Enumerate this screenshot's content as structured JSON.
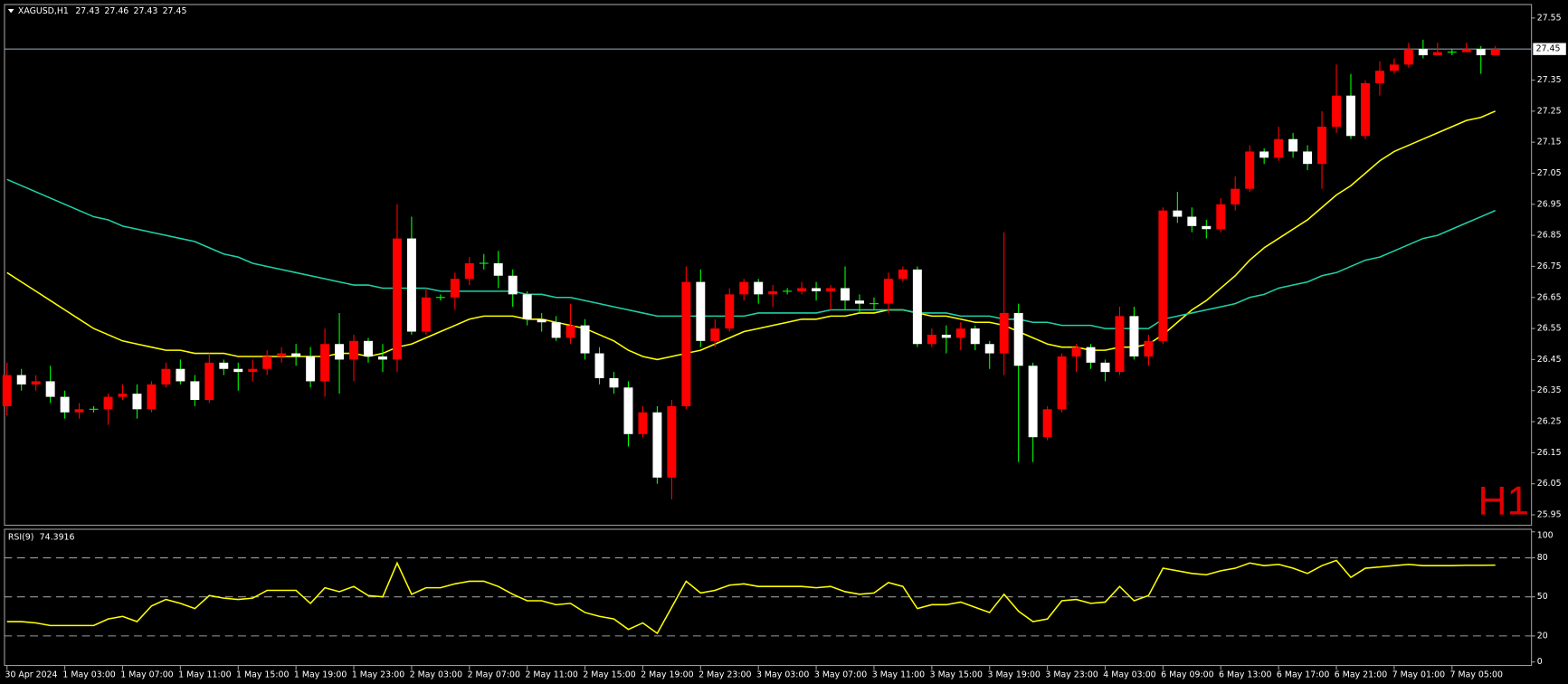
{
  "chart_data": [
    {
      "type": "candlestick",
      "symbol": "XAGUSD,H1",
      "period_label": "H1",
      "up_color": "#ff0000",
      "down_color": "#ffffff",
      "wick_down_color": "#00ff00",
      "price_line_color": "#8c9aa8",
      "categories": [
        "30 Apr 2024",
        null,
        null,
        null,
        "1 May 03:00",
        null,
        null,
        null,
        "1 May 07:00",
        null,
        null,
        null,
        "1 May 11:00",
        null,
        null,
        null,
        "1 May 15:00",
        null,
        null,
        null,
        "1 May 19:00",
        null,
        null,
        null,
        "1 May 23:00",
        null,
        null,
        null,
        "2 May 03:00",
        null,
        null,
        null,
        "2 May 07:00",
        null,
        null,
        null,
        "2 May 11:00",
        null,
        null,
        null,
        "2 May 15:00",
        null,
        null,
        null,
        "2 May 19:00",
        null,
        null,
        null,
        "2 May 23:00",
        null,
        null,
        null,
        "3 May 03:00",
        null,
        null,
        null,
        "3 May 07:00",
        null,
        null,
        null,
        "3 May 11:00",
        null,
        null,
        null,
        "3 May 15:00",
        null,
        null,
        null,
        "3 May 19:00",
        null,
        null,
        null,
        "3 May 23:00",
        null,
        null,
        null,
        "4 May 03:00",
        null,
        null,
        null,
        "6 May 09:00",
        null,
        null,
        null,
        "6 May 13:00",
        null,
        null,
        null,
        "6 May 17:00",
        null,
        null,
        null,
        "6 May 21:00",
        null,
        null,
        null,
        "7 May 01:00",
        null,
        null,
        null,
        "7 May 05:00",
        null,
        null,
        null
      ],
      "open": [
        26.3,
        26.4,
        26.37,
        26.38,
        26.33,
        26.28,
        26.29,
        26.29,
        26.33,
        26.34,
        26.29,
        26.37,
        26.42,
        26.38,
        26.32,
        26.44,
        26.42,
        26.41,
        26.42,
        26.46,
        26.47,
        26.46,
        26.38,
        26.5,
        26.45,
        26.51,
        26.46,
        26.45,
        26.84,
        26.54,
        26.65,
        26.65,
        26.71,
        26.76,
        26.76,
        26.72,
        26.66,
        26.58,
        26.57,
        26.52,
        26.56,
        26.47,
        26.39,
        26.36,
        26.21,
        26.28,
        26.07,
        26.3,
        26.7,
        26.51,
        26.55,
        26.66,
        26.7,
        26.66,
        26.67,
        26.67,
        26.68,
        26.67,
        26.68,
        26.64,
        26.63,
        26.63,
        26.71,
        26.74,
        26.5,
        26.53,
        26.52,
        26.55,
        26.5,
        26.47,
        26.6,
        26.43,
        26.2,
        26.29,
        26.46,
        26.49,
        26.44,
        26.41,
        26.59,
        26.46,
        26.51,
        26.93,
        26.91,
        26.88,
        26.87,
        26.95,
        27.0,
        27.12,
        27.1,
        27.16,
        27.12,
        27.08,
        27.2,
        27.3,
        27.17,
        27.34,
        27.38,
        27.4,
        27.45,
        27.43,
        27.44,
        27.44,
        27.45,
        27.43
      ],
      "high": [
        26.44,
        26.42,
        26.4,
        26.43,
        26.35,
        26.31,
        26.3,
        26.34,
        26.37,
        26.37,
        26.38,
        26.44,
        26.45,
        26.4,
        26.47,
        26.45,
        26.44,
        26.45,
        26.48,
        26.49,
        26.5,
        26.49,
        26.55,
        26.6,
        26.53,
        26.52,
        26.5,
        26.95,
        26.91,
        26.68,
        26.66,
        26.73,
        26.78,
        26.79,
        26.8,
        26.74,
        26.67,
        26.6,
        26.59,
        26.63,
        26.58,
        26.49,
        26.41,
        26.38,
        26.3,
        26.3,
        26.32,
        26.75,
        26.74,
        26.58,
        26.68,
        26.71,
        26.71,
        26.69,
        26.68,
        26.7,
        26.7,
        26.69,
        26.75,
        26.66,
        26.65,
        26.73,
        26.75,
        26.75,
        26.55,
        26.56,
        26.57,
        26.56,
        26.51,
        26.86,
        26.63,
        26.44,
        26.3,
        26.47,
        26.5,
        26.5,
        26.45,
        26.62,
        26.62,
        26.53,
        26.94,
        26.99,
        26.94,
        26.9,
        26.97,
        27.04,
        27.14,
        27.13,
        27.2,
        27.18,
        27.14,
        27.25,
        27.4,
        27.37,
        27.35,
        27.41,
        27.42,
        27.47,
        27.48,
        27.47,
        27.45,
        27.47,
        27.46,
        27.46
      ],
      "low": [
        26.27,
        26.35,
        26.35,
        26.31,
        26.26,
        26.26,
        26.28,
        26.24,
        26.32,
        26.26,
        26.28,
        26.36,
        26.37,
        26.3,
        26.31,
        26.4,
        26.35,
        26.38,
        26.4,
        26.44,
        26.43,
        26.36,
        26.33,
        26.34,
        26.38,
        26.44,
        26.41,
        26.41,
        26.53,
        26.53,
        26.64,
        26.61,
        26.69,
        26.74,
        26.68,
        26.62,
        26.56,
        26.54,
        26.51,
        26.5,
        26.45,
        26.37,
        26.34,
        26.17,
        26.2,
        26.05,
        26.0,
        26.29,
        26.49,
        26.49,
        26.54,
        26.64,
        26.63,
        26.62,
        26.66,
        26.66,
        26.64,
        26.61,
        26.61,
        26.6,
        26.61,
        26.6,
        26.7,
        26.49,
        26.49,
        26.47,
        26.48,
        26.48,
        26.42,
        26.4,
        26.12,
        26.12,
        26.19,
        26.28,
        26.41,
        26.42,
        26.38,
        26.4,
        26.45,
        26.43,
        26.5,
        26.89,
        26.86,
        26.84,
        26.86,
        26.93,
        26.99,
        27.08,
        27.09,
        27.1,
        27.06,
        27.0,
        27.18,
        27.16,
        27.16,
        27.3,
        27.37,
        27.39,
        27.42,
        27.43,
        27.43,
        27.44,
        27.37,
        27.43
      ],
      "close": [
        26.4,
        26.37,
        26.38,
        26.33,
        26.28,
        26.29,
        26.29,
        26.33,
        26.34,
        26.29,
        26.37,
        26.42,
        26.38,
        26.32,
        26.44,
        26.42,
        26.41,
        26.42,
        26.46,
        26.47,
        26.46,
        26.38,
        26.5,
        26.45,
        26.51,
        26.46,
        26.45,
        26.84,
        26.54,
        26.65,
        26.65,
        26.71,
        26.76,
        26.76,
        26.72,
        26.66,
        26.58,
        26.57,
        26.52,
        26.56,
        26.47,
        26.39,
        26.36,
        26.21,
        26.28,
        26.07,
        26.3,
        26.7,
        26.51,
        26.55,
        26.66,
        26.7,
        26.66,
        26.67,
        26.67,
        26.68,
        26.67,
        26.68,
        26.64,
        26.63,
        26.63,
        26.71,
        26.74,
        26.5,
        26.53,
        26.52,
        26.55,
        26.5,
        26.47,
        26.6,
        26.43,
        26.2,
        26.29,
        26.46,
        26.49,
        26.44,
        26.41,
        26.59,
        26.46,
        26.51,
        26.93,
        26.91,
        26.88,
        26.87,
        26.95,
        27.0,
        27.12,
        27.1,
        27.16,
        27.12,
        27.08,
        27.2,
        27.3,
        27.17,
        27.34,
        27.38,
        27.4,
        27.45,
        27.43,
        27.44,
        27.44,
        27.45,
        27.43,
        27.45
      ],
      "overlays": [
        {
          "type": "line",
          "color": "#ffff00",
          "values": [
            26.73,
            26.7,
            26.67,
            26.64,
            26.61,
            26.58,
            26.55,
            26.53,
            26.51,
            26.5,
            26.49,
            26.48,
            26.48,
            26.47,
            26.47,
            26.47,
            26.46,
            26.46,
            26.46,
            26.46,
            26.46,
            26.46,
            26.46,
            26.47,
            26.47,
            26.46,
            26.47,
            26.49,
            26.5,
            26.52,
            26.54,
            26.56,
            26.58,
            26.59,
            26.59,
            26.59,
            26.58,
            26.58,
            26.57,
            26.56,
            26.55,
            26.53,
            26.51,
            26.48,
            26.46,
            26.45,
            26.46,
            26.47,
            26.48,
            26.5,
            26.52,
            26.54,
            26.55,
            26.56,
            26.57,
            26.58,
            26.58,
            26.59,
            26.59,
            26.6,
            26.6,
            26.61,
            26.61,
            26.6,
            26.59,
            26.59,
            26.58,
            26.57,
            26.57,
            26.56,
            26.54,
            26.52,
            26.5,
            26.49,
            26.49,
            26.48,
            26.48,
            26.49,
            26.49,
            26.5,
            26.53,
            26.57,
            26.61,
            26.64,
            26.68,
            26.72,
            26.77,
            26.81,
            26.84,
            26.87,
            26.9,
            26.94,
            26.98,
            27.01,
            27.05,
            27.09,
            27.12,
            27.14,
            27.16,
            27.18,
            27.2,
            27.22,
            27.23,
            27.25
          ]
        },
        {
          "type": "line",
          "color": "#1fd1a8",
          "values": [
            27.03,
            27.01,
            26.99,
            26.97,
            26.95,
            26.93,
            26.91,
            26.9,
            26.88,
            26.87,
            26.86,
            26.85,
            26.84,
            26.83,
            26.81,
            26.79,
            26.78,
            26.76,
            26.75,
            26.74,
            26.73,
            26.72,
            26.71,
            26.7,
            26.69,
            26.69,
            26.68,
            26.68,
            26.68,
            26.68,
            26.67,
            26.67,
            26.67,
            26.67,
            26.67,
            26.67,
            26.66,
            26.66,
            26.65,
            26.65,
            26.64,
            26.63,
            26.62,
            26.61,
            26.6,
            26.59,
            26.59,
            26.59,
            26.59,
            26.59,
            26.59,
            26.59,
            26.6,
            26.6,
            26.6,
            26.6,
            26.6,
            26.61,
            26.61,
            26.61,
            26.61,
            26.61,
            26.61,
            26.6,
            26.6,
            26.6,
            26.59,
            26.59,
            26.59,
            26.58,
            26.58,
            26.57,
            26.57,
            26.56,
            26.56,
            26.56,
            26.55,
            26.55,
            26.55,
            26.55,
            26.58,
            26.59,
            26.6,
            26.61,
            26.62,
            26.63,
            26.65,
            26.66,
            26.68,
            26.69,
            26.7,
            26.72,
            26.73,
            26.75,
            26.77,
            26.78,
            26.8,
            26.82,
            26.84,
            26.85,
            26.87,
            26.89,
            26.91,
            26.93
          ]
        }
      ],
      "ylim": [
        25.918,
        27.595
      ],
      "yticks": [
        27.55,
        27.35,
        27.25,
        27.15,
        27.05,
        26.95,
        26.85,
        26.75,
        26.65,
        26.55,
        26.45,
        26.35,
        26.25,
        26.15,
        26.05,
        25.95
      ]
    },
    {
      "type": "line",
      "name": "RSI(9)",
      "color": "#ffff00",
      "values": [
        31,
        31,
        30,
        28,
        28,
        28,
        28,
        33,
        35,
        31,
        43,
        48,
        45,
        41,
        51,
        49,
        48,
        49,
        55,
        55,
        55,
        45,
        57,
        54,
        58,
        51,
        50,
        76,
        52,
        57,
        57,
        60,
        62,
        62,
        58,
        52,
        47,
        47,
        44,
        45,
        38,
        35,
        33,
        25,
        30,
        22,
        42,
        62,
        53,
        55,
        59,
        60,
        58,
        58,
        58,
        58,
        57,
        58,
        54,
        52,
        53,
        61,
        58,
        41,
        44,
        44,
        46,
        42,
        38,
        52,
        39,
        31,
        33,
        47,
        48,
        45,
        46,
        58,
        47,
        51,
        72,
        70,
        68,
        67,
        70,
        72,
        76,
        74,
        75,
        72,
        68,
        74,
        78,
        65,
        72,
        73,
        74,
        75,
        74,
        74,
        74,
        74.3,
        74.3,
        74.3916
      ],
      "ylim": [
        0,
        100
      ],
      "yticks": [
        100,
        80,
        50,
        20,
        0
      ],
      "levels": [
        80,
        50,
        20
      ]
    }
  ]
}
